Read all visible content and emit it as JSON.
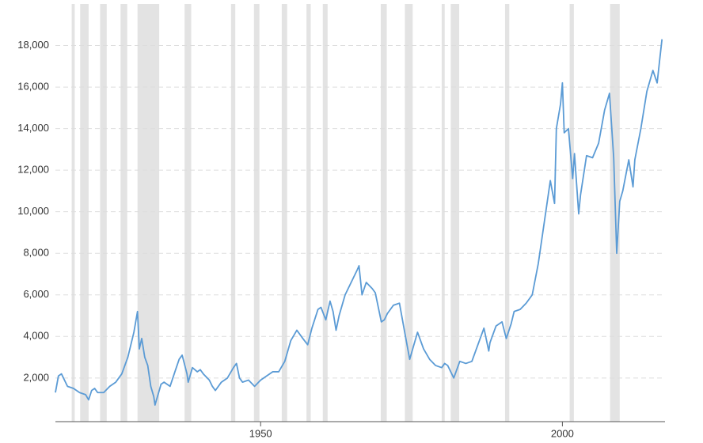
{
  "chart_data": {
    "type": "line",
    "x": [
      1916,
      1916.5,
      1917,
      1917.5,
      1918,
      1919,
      1919.5,
      1920,
      1921,
      1921.5,
      1922,
      1922.5,
      1923,
      1924,
      1925,
      1926,
      1927,
      1928,
      1929,
      1929.6,
      1929.9,
      1930.3,
      1930.8,
      1931.3,
      1931.8,
      1932.3,
      1932.5,
      1933,
      1933.5,
      1934,
      1935,
      1935.8,
      1936.5,
      1937,
      1937.8,
      1938,
      1938.7,
      1939.5,
      1940,
      1940.5,
      1941.5,
      1942,
      1942.5,
      1943.5,
      1944.5,
      1945.5,
      1946,
      1946.5,
      1947,
      1948,
      1949,
      1950,
      1951,
      1952,
      1953,
      1954,
      1955,
      1956,
      1957,
      1957.8,
      1958.5,
      1959.5,
      1960,
      1960.8,
      1961.5,
      1962,
      1962.5,
      1963,
      1964,
      1965,
      1966,
      1966.3,
      1966.8,
      1967.5,
      1968.5,
      1969,
      1970,
      1970.5,
      1971,
      1972,
      1973,
      1974,
      1974.7,
      1975.3,
      1976,
      1977,
      1978,
      1979,
      1980,
      1980.5,
      1981,
      1982,
      1983,
      1984,
      1985,
      1986,
      1987,
      1987.8,
      1988,
      1989,
      1990,
      1990.7,
      1991.5,
      1992,
      1993,
      1994,
      1995,
      1996,
      1997,
      1998,
      1998.7,
      1999,
      1999.7,
      2000,
      2000.3,
      2001,
      2001.7,
      2002,
      2002.7,
      2003,
      2004,
      2005,
      2006,
      2007,
      2007.8,
      2008.5,
      2009,
      2009.5,
      2010,
      2011,
      2011.7,
      2012,
      2013,
      2014,
      2015,
      2015.7,
      2016,
      2016.5
    ],
    "series": [
      {
        "color": "#5b9bd5",
        "values": [
          1300,
          2100,
          2200,
          1900,
          1600,
          1500,
          1400,
          1300,
          1200,
          950,
          1400,
          1500,
          1300,
          1300,
          1600,
          1800,
          2200,
          3000,
          4200,
          5200,
          3400,
          3900,
          3000,
          2600,
          1600,
          1100,
          700,
          1200,
          1700,
          1800,
          1600,
          2300,
          2900,
          3100,
          2200,
          1800,
          2500,
          2300,
          2400,
          2200,
          1900,
          1600,
          1400,
          1800,
          2000,
          2500,
          2700,
          2000,
          1800,
          1900,
          1600,
          1900,
          2100,
          2300,
          2300,
          2800,
          3800,
          4300,
          3900,
          3600,
          4400,
          5300,
          5400,
          4800,
          5700,
          5200,
          4300,
          5000,
          6000,
          6600,
          7200,
          7400,
          6000,
          6600,
          6300,
          6100,
          4700,
          4800,
          5100,
          5500,
          5600,
          4000,
          2900,
          3500,
          4200,
          3400,
          2900,
          2600,
          2500,
          2700,
          2600,
          2000,
          2800,
          2700,
          2800,
          3600,
          4400,
          3300,
          3700,
          4500,
          4700,
          3900,
          4600,
          5200,
          5300,
          5600,
          6000,
          7500,
          9500,
          11500,
          10400,
          14000,
          15200,
          16200,
          13800,
          14000,
          11600,
          12800,
          9900,
          10800,
          12700,
          12600,
          13300,
          14900,
          15700,
          12600,
          8000,
          10500,
          11000,
          12500,
          11200,
          12500,
          14000,
          15800,
          16800,
          16200,
          17000,
          18300
        ]
      }
    ],
    "shaded_periods": [
      [
        1918.7,
        1919.2
      ],
      [
        1920.1,
        1921.5
      ],
      [
        1923.4,
        1924.5
      ],
      [
        1926.8,
        1927.9
      ],
      [
        1929.6,
        1933.2
      ],
      [
        1937.4,
        1938.5
      ],
      [
        1945.1,
        1945.8
      ],
      [
        1948.9,
        1949.8
      ],
      [
        1953.5,
        1954.4
      ],
      [
        1957.6,
        1958.3
      ],
      [
        1960.3,
        1961.1
      ],
      [
        1969.9,
        1970.9
      ],
      [
        1973.9,
        1975.2
      ],
      [
        1980.0,
        1980.5
      ],
      [
        1981.5,
        1982.9
      ],
      [
        1990.5,
        1991.2
      ],
      [
        2001.2,
        2001.9
      ],
      [
        2007.9,
        2009.5
      ]
    ],
    "shade_color": "#e3e3e3",
    "xlim": [
      1916,
      2017
    ],
    "xticks": [
      1950,
      2000
    ],
    "ylim": [
      -100,
      20000
    ],
    "yticks": [
      {
        "value": 2000,
        "label": "2,000"
      },
      {
        "value": 4000,
        "label": "4,000"
      },
      {
        "value": 6000,
        "label": "6,000"
      },
      {
        "value": 8000,
        "label": "8,000"
      },
      {
        "value": 10000,
        "label": "10,000"
      },
      {
        "value": 12000,
        "label": "12,000"
      },
      {
        "value": 14000,
        "label": "14,000"
      },
      {
        "value": 16000,
        "label": "16,000"
      },
      {
        "value": 18000,
        "label": "18,000"
      }
    ],
    "grid": true
  }
}
